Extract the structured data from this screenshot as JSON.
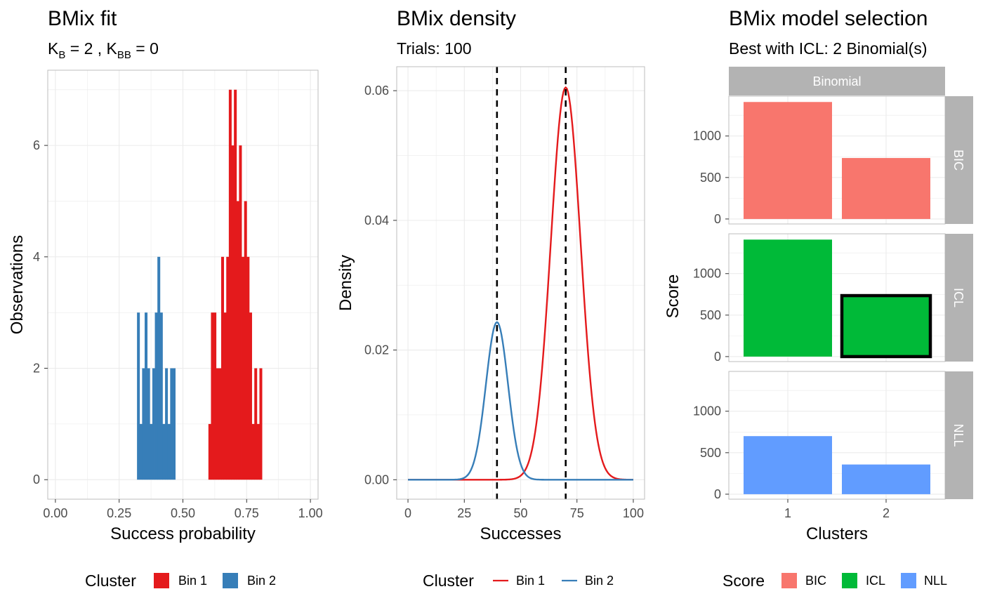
{
  "colors": {
    "bin1": "#E41A1C",
    "bin2": "#377EB8",
    "bic": "#F8766D",
    "icl": "#00BA38",
    "nll": "#619CFF",
    "strip": "#B3B3B3",
    "grid": "#EBEBEB",
    "panel_border": "#BEBEBE"
  },
  "chart_data": [
    {
      "type": "bar",
      "title": "BMix fit",
      "subtitle": "K_B = 2 , K_BB = 0",
      "subtitle_parts": {
        "k": "K",
        "b_sub": "B",
        "mid": " = 2 , ",
        "bb_sub": "BB",
        "end": " = 0"
      },
      "xlabel": "Success probability",
      "ylabel": "Observations",
      "xlim": [
        -0.03,
        1.03
      ],
      "ylim": [
        -0.35,
        7.35
      ],
      "xticks": [
        "0.00",
        "0.25",
        "0.50",
        "0.75",
        "1.00"
      ],
      "yticks": [
        "0",
        "2",
        "4",
        "6"
      ],
      "bin_width": 0.01,
      "series": [
        {
          "name": "Bin 1",
          "bins": [
            [
              0.6,
              1
            ],
            [
              0.61,
              3
            ],
            [
              0.62,
              3
            ],
            [
              0.63,
              2
            ],
            [
              0.64,
              2
            ],
            [
              0.65,
              4
            ],
            [
              0.66,
              3
            ],
            [
              0.67,
              4
            ],
            [
              0.68,
              7
            ],
            [
              0.69,
              6
            ],
            [
              0.7,
              7
            ],
            [
              0.71,
              5
            ],
            [
              0.72,
              6
            ],
            [
              0.73,
              4
            ],
            [
              0.74,
              5
            ],
            [
              0.75,
              4
            ],
            [
              0.76,
              3
            ],
            [
              0.77,
              1
            ],
            [
              0.78,
              2
            ],
            [
              0.79,
              1
            ],
            [
              0.8,
              2
            ]
          ]
        },
        {
          "name": "Bin 2",
          "bins": [
            [
              0.32,
              3
            ],
            [
              0.33,
              1
            ],
            [
              0.34,
              2
            ],
            [
              0.35,
              3
            ],
            [
              0.36,
              2
            ],
            [
              0.37,
              1
            ],
            [
              0.38,
              2
            ],
            [
              0.39,
              3
            ],
            [
              0.4,
              4
            ],
            [
              0.41,
              3
            ],
            [
              0.42,
              1
            ],
            [
              0.43,
              2
            ],
            [
              0.44,
              1
            ],
            [
              0.45,
              2
            ],
            [
              0.46,
              2
            ]
          ]
        }
      ],
      "legend": {
        "title": "Cluster",
        "position": "bottom",
        "items": [
          "Bin 1",
          "Bin 2"
        ]
      }
    },
    {
      "type": "line",
      "title": "BMix density",
      "subtitle": "Trials: 100",
      "xlabel": "Successes",
      "ylabel": "Density",
      "xlim": [
        -5,
        105
      ],
      "ylim": [
        -0.003,
        0.0637
      ],
      "xticks": [
        "0",
        "25",
        "50",
        "75",
        "100"
      ],
      "yticks": [
        "0.00",
        "0.02",
        "0.04",
        "0.06"
      ],
      "series": [
        {
          "name": "Bin 1",
          "mean": 70,
          "sd": 6.6,
          "peak": 0.0605
        },
        {
          "name": "Bin 2",
          "mean": 39.5,
          "sd": 4.9,
          "peak": 0.0243
        }
      ],
      "vlines": [
        39.5,
        70
      ],
      "legend": {
        "title": "Cluster",
        "position": "bottom",
        "items": [
          "Bin 1",
          "Bin 2"
        ]
      }
    },
    {
      "type": "bar",
      "title": "BMix model selection",
      "subtitle": "Best with ICL: 2 Binomial(s)",
      "xlabel": "Clusters",
      "ylabel": "Score",
      "strip_top": "Binomial",
      "categories": [
        "1",
        "2"
      ],
      "ylim": [
        -60,
        1480
      ],
      "yticks": [
        "0",
        "500",
        "1000"
      ],
      "facets": [
        {
          "name": "BIC",
          "values": [
            1410,
            735
          ]
        },
        {
          "name": "ICL",
          "values": [
            1410,
            735
          ],
          "highlight_index": 1
        },
        {
          "name": "NLL",
          "values": [
            700,
            358
          ]
        }
      ],
      "legend": {
        "title": "Score",
        "position": "bottom",
        "items": [
          "BIC",
          "ICL",
          "NLL"
        ]
      }
    }
  ]
}
